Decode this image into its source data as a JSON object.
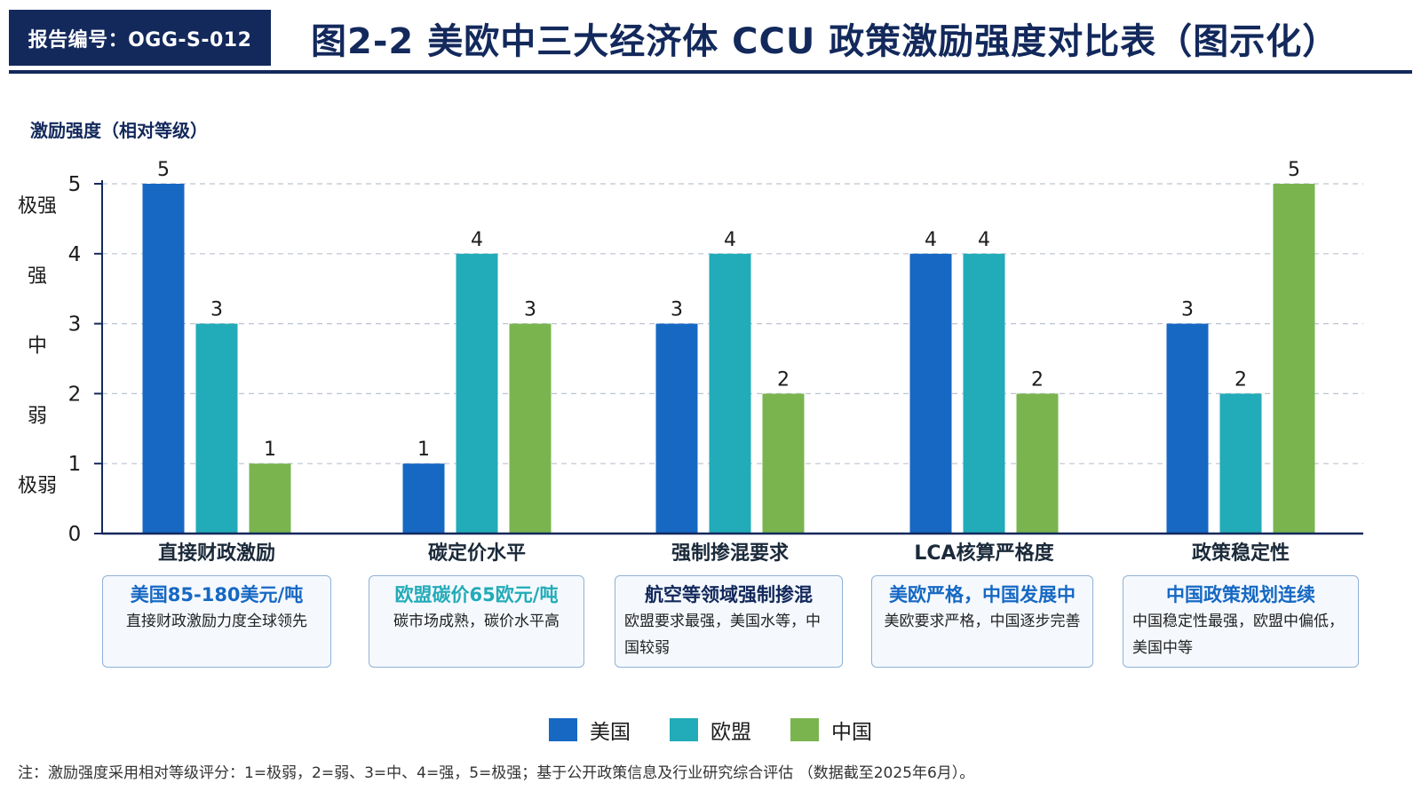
{
  "header": {
    "report_id": "报告编号：OGG-S-012",
    "title": "图2-2  美欧中三大经济体 CCU 政策激励强度对比表（图示化）"
  },
  "colors": {
    "navy": "#13295c",
    "usa": "#1668c3",
    "eu": "#22abb8",
    "china": "#7ab44f",
    "grid": "#bcc4cf"
  },
  "chart_data": {
    "type": "bar",
    "ylabel": "激励强度（相对等级）",
    "ylim": [
      0,
      5
    ],
    "yticks": [
      0,
      1,
      2,
      3,
      4,
      5
    ],
    "level_labels": [
      {
        "value": 5,
        "label": "极强"
      },
      {
        "value": 4,
        "label": "强"
      },
      {
        "value": 3,
        "label": "中"
      },
      {
        "value": 2,
        "label": "弱"
      },
      {
        "value": 1,
        "label": "极弱"
      }
    ],
    "categories": [
      "直接财政激励",
      "碳定价水平",
      "强制掺混要求",
      "LCA核算严格度",
      "政策稳定性"
    ],
    "series": [
      {
        "name": "美国",
        "color": "#1668c3",
        "values": [
          5,
          1,
          3,
          4,
          3
        ]
      },
      {
        "name": "欧盟",
        "color": "#22abb8",
        "values": [
          3,
          4,
          4,
          4,
          2
        ]
      },
      {
        "name": "中国",
        "color": "#7ab44f",
        "values": [
          1,
          3,
          2,
          2,
          5
        ]
      }
    ],
    "grid": true,
    "legend_position": "bottom"
  },
  "notes": [
    {
      "title": "美国85-180美元/吨",
      "title_color": "#1668c3",
      "desc": "直接财政激励力度全球领先"
    },
    {
      "title": "欧盟碳价65欧元/吨",
      "title_color": "#22abb8",
      "desc": "碳市场成熟，碳价水平高"
    },
    {
      "title": "航空等领域强制掺混",
      "title_color": "#13295c",
      "desc": "欧盟要求最强，美国水等，中国较弱"
    },
    {
      "title": "美欧严格，中国发展中",
      "title_color": "#1668c3",
      "desc": "美欧要求严格，中国逐步完善"
    },
    {
      "title": "中国政策规划连续",
      "title_color": "#1668c3",
      "desc": "中国稳定性最强，欧盟中偏低，美国中等"
    }
  ],
  "legend": [
    {
      "name": "美国",
      "color": "#1668c3"
    },
    {
      "name": "欧盟",
      "color": "#22abb8"
    },
    {
      "name": "中国",
      "color": "#7ab44f"
    }
  ],
  "footnote": "注：激励强度采用相对等级评分：1=极弱，2=弱、3=中、4=强，5=极强；基于公开政策信息及行业研究综合评估 （数据截至2025年6月）。"
}
